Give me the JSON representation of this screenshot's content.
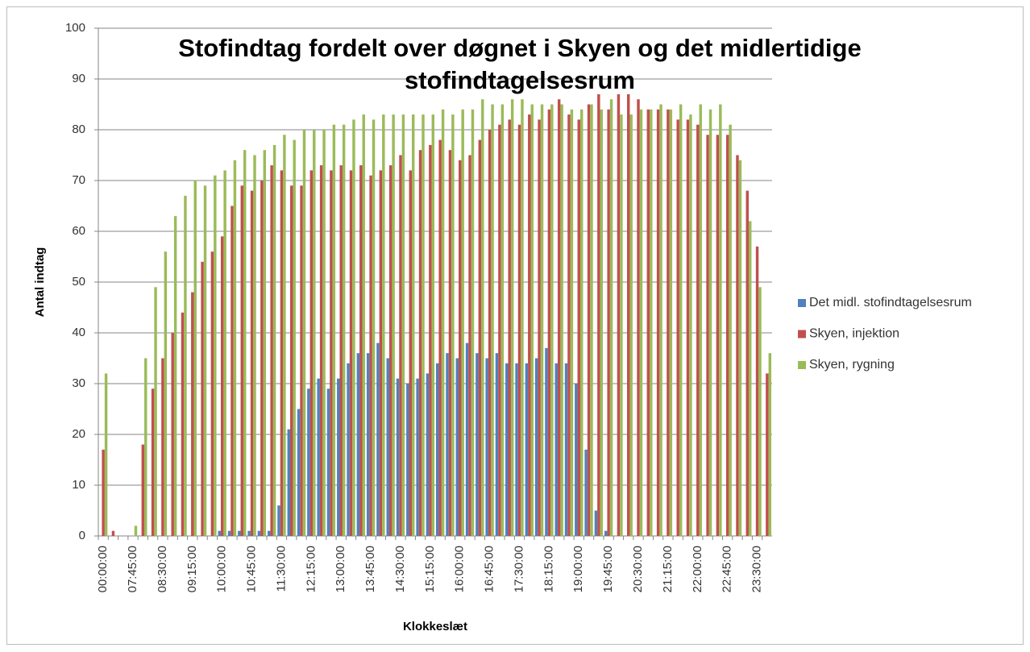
{
  "chart_data": {
    "type": "bar",
    "title": "Stofindtag fordelt over døgnet i Skyen og det midlertidige stofindtagelsesrum",
    "x_label": "Klokkeslæt",
    "y_label": "Antal indtag",
    "categories": [
      "00:00:00",
      null,
      null,
      "07:45:00",
      null,
      null,
      "08:30:00",
      null,
      null,
      "09:15:00",
      null,
      null,
      "10:00:00",
      null,
      null,
      "10:45:00",
      null,
      null,
      "11:30:00",
      null,
      null,
      "12:15:00",
      null,
      null,
      "13:00:00",
      null,
      null,
      "13:45:00",
      null,
      null,
      "14:30:00",
      null,
      null,
      "15:15:00",
      null,
      null,
      "16:00:00",
      null,
      null,
      "16:45:00",
      null,
      null,
      "17:30:00",
      null,
      null,
      "18:15:00",
      null,
      null,
      "19:00:00",
      null,
      null,
      "19:45:00",
      null,
      null,
      "20:30:00",
      null,
      null,
      "21:15:00",
      null,
      null,
      "22:00:00",
      null,
      null,
      "22:45:00",
      null,
      null,
      "23:30:00",
      null
    ],
    "series": [
      {
        "name": "Det midl. stofindtagelsesrum",
        "color": "#4f81bd",
        "values": [
          0,
          0,
          0,
          0,
          0,
          0,
          0,
          0,
          0,
          0,
          0,
          0,
          1,
          1,
          1,
          1,
          1,
          1,
          6,
          21,
          25,
          29,
          31,
          29,
          31,
          34,
          36,
          36,
          38,
          35,
          31,
          30,
          31,
          32,
          34,
          36,
          35,
          38,
          36,
          35,
          36,
          34,
          34,
          34,
          35,
          37,
          34,
          34,
          30,
          17,
          5,
          1,
          0,
          0,
          0,
          0,
          0,
          0,
          0,
          0,
          0,
          0,
          0,
          0,
          0,
          0,
          0,
          0
        ]
      },
      {
        "name": "Skyen, injektion",
        "color": "#c0504d",
        "values": [
          17,
          1,
          0,
          0,
          18,
          29,
          35,
          40,
          44,
          48,
          54,
          56,
          59,
          65,
          69,
          68,
          70,
          73,
          72,
          69,
          69,
          72,
          73,
          72,
          73,
          72,
          73,
          71,
          72,
          73,
          75,
          72,
          76,
          77,
          78,
          76,
          74,
          75,
          78,
          80,
          81,
          82,
          81,
          83,
          82,
          84,
          86,
          83,
          82,
          85,
          87,
          84,
          87,
          87,
          86,
          84,
          84,
          84,
          82,
          82,
          81,
          79,
          79,
          79,
          75,
          68,
          57,
          32
        ]
      },
      {
        "name": "Skyen, rygning",
        "color": "#9bbb59",
        "values": [
          32,
          0,
          0,
          2,
          35,
          49,
          56,
          63,
          67,
          70,
          69,
          71,
          72,
          74,
          76,
          75,
          76,
          77,
          79,
          78,
          80,
          80,
          80,
          81,
          81,
          82,
          83,
          82,
          83,
          83,
          83,
          83,
          83,
          83,
          84,
          83,
          84,
          84,
          86,
          85,
          85,
          86,
          86,
          85,
          85,
          85,
          85,
          84,
          84,
          85,
          84,
          86,
          83,
          83,
          84,
          84,
          85,
          84,
          85,
          83,
          85,
          84,
          85,
          81,
          74,
          62,
          49,
          36
        ]
      }
    ],
    "ylim": [
      0,
      100
    ],
    "yticks": [
      0,
      10,
      20,
      30,
      40,
      50,
      60,
      70,
      80,
      90,
      100
    ],
    "grid": true,
    "legend": "right"
  }
}
